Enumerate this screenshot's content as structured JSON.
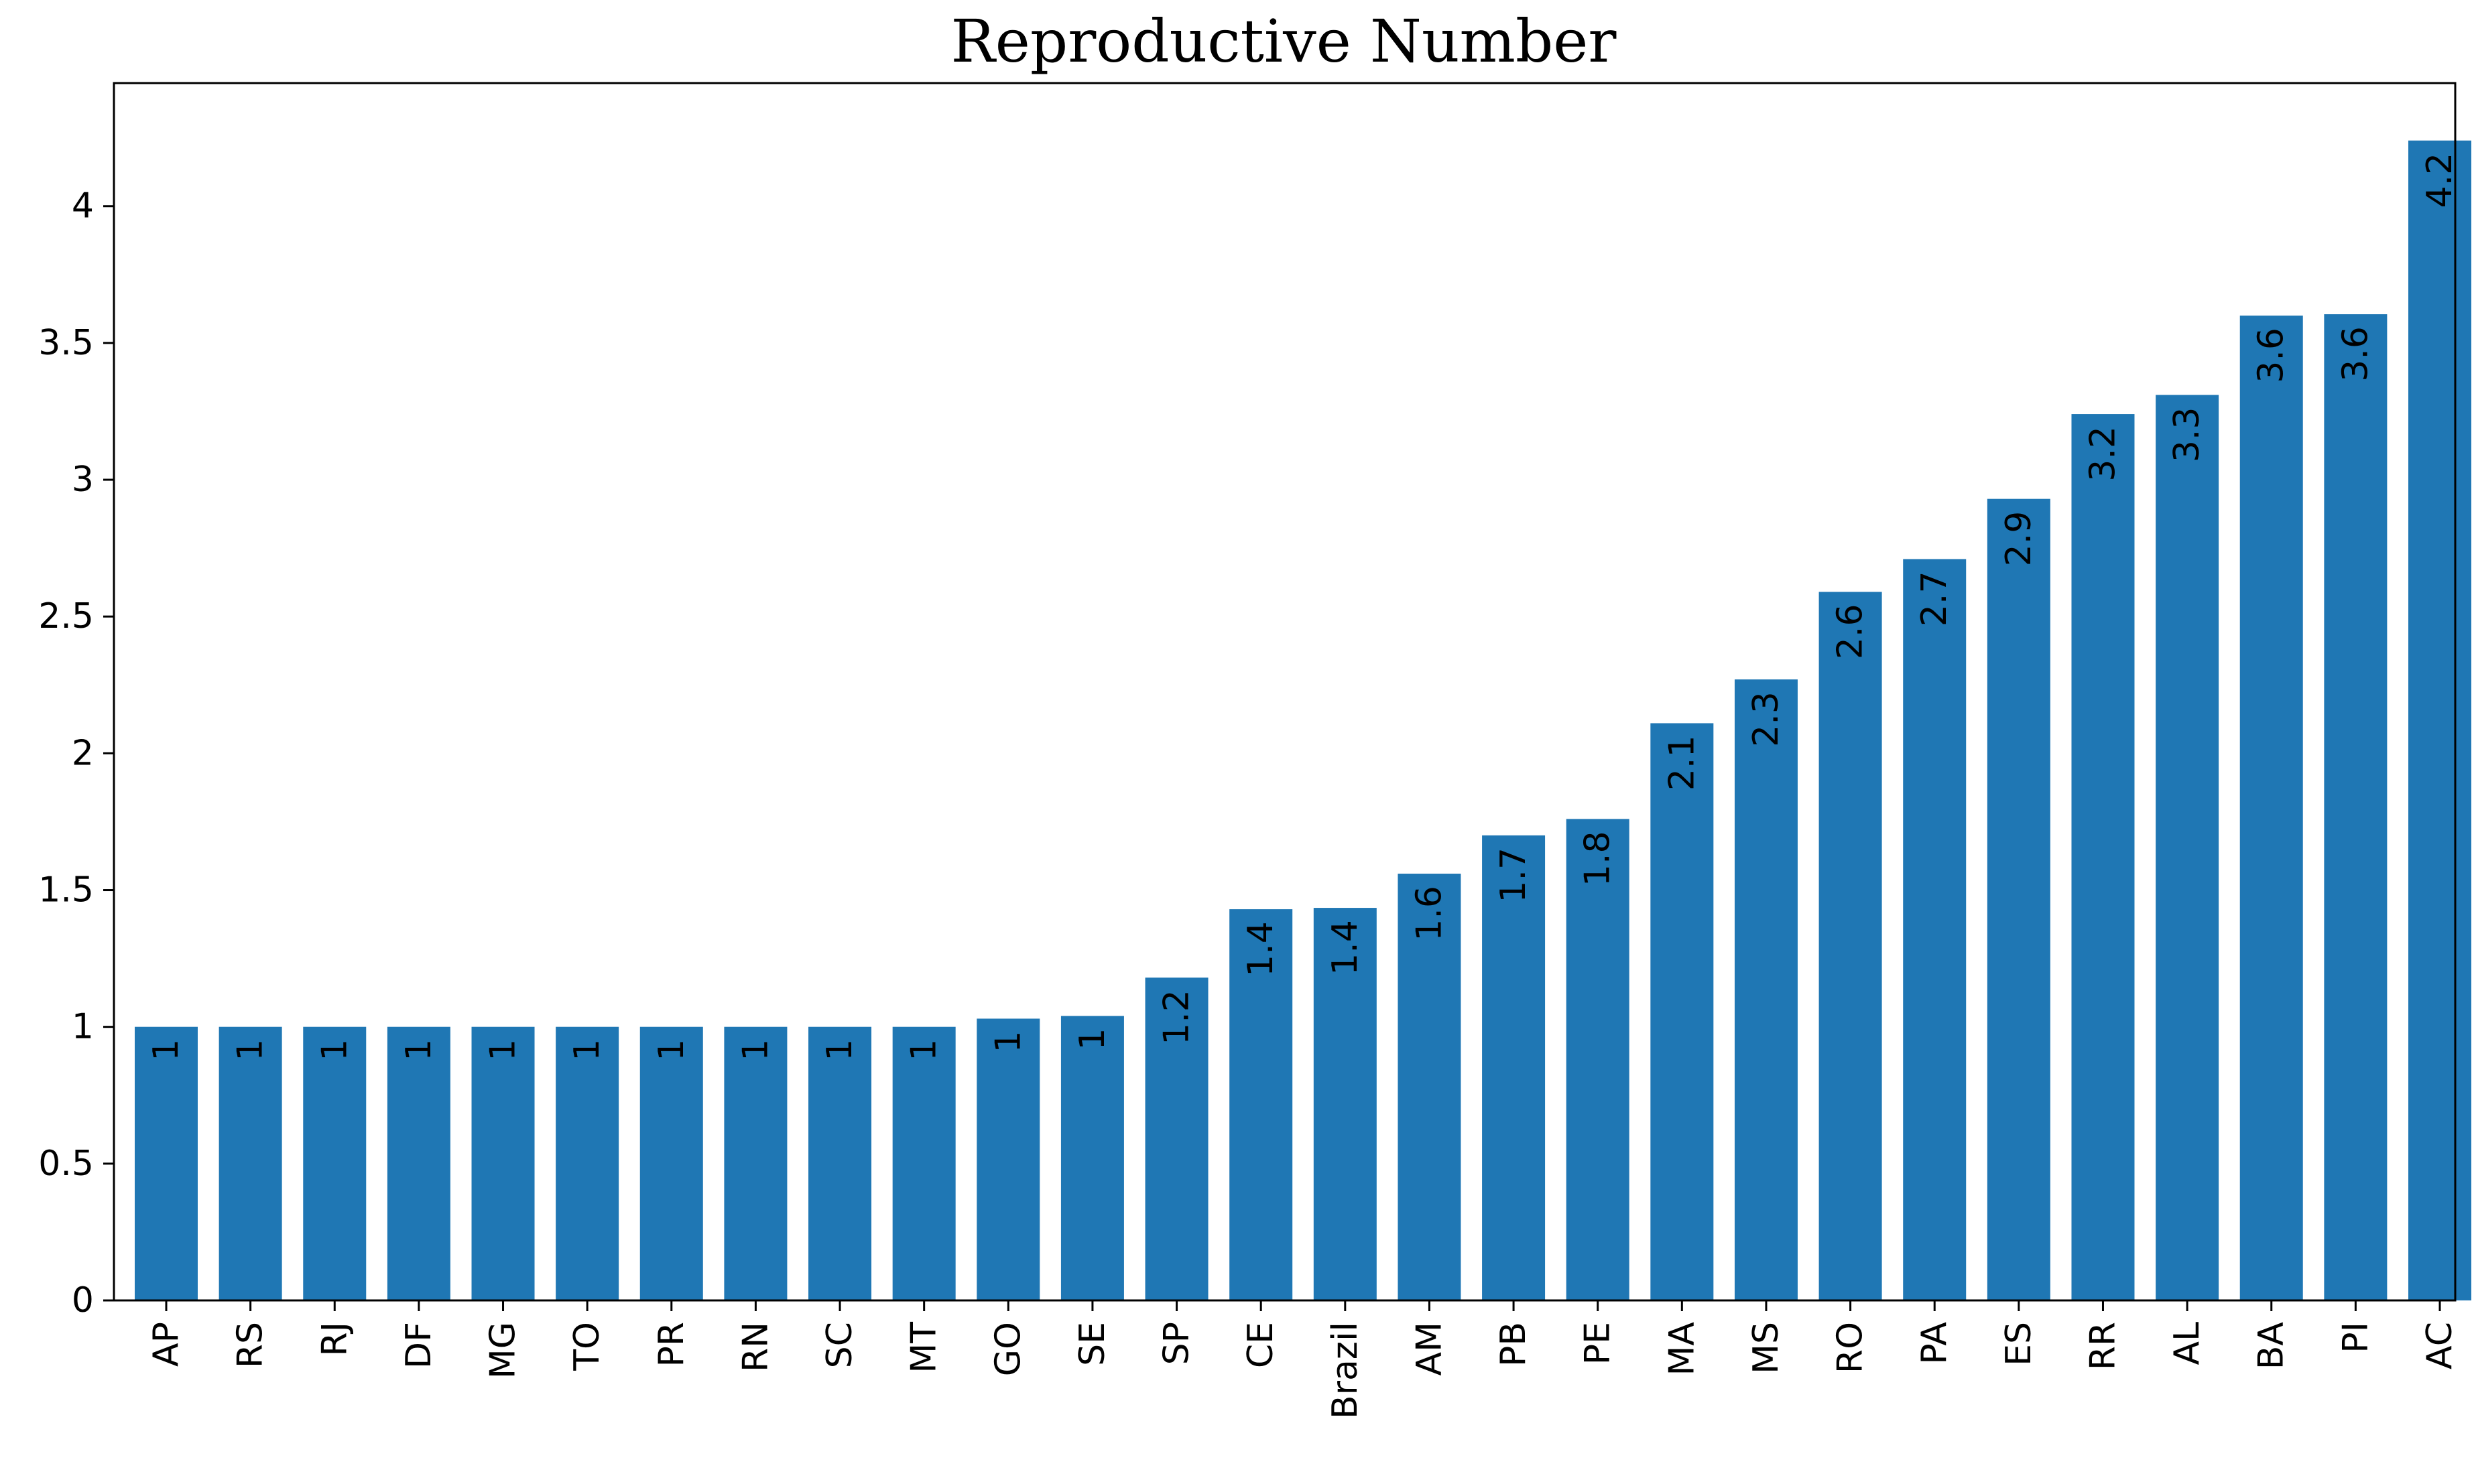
{
  "chart_data": {
    "type": "bar",
    "title": "Reproductive Number",
    "xlabel": "",
    "ylabel": "",
    "categories": [
      "AP",
      "RS",
      "RJ",
      "DF",
      "MG",
      "TO",
      "PR",
      "RN",
      "SC",
      "MT",
      "GO",
      "SE",
      "SP",
      "CE",
      "Brazil",
      "AM",
      "PB",
      "PE",
      "MA",
      "MS",
      "RO",
      "PA",
      "ES",
      "RR",
      "AL",
      "BA",
      "PI",
      "AC"
    ],
    "values": [
      1.0,
      1.0,
      1.0,
      1.0,
      1.0,
      1.0,
      1.0,
      1.0,
      1.0,
      1.0,
      1.03,
      1.04,
      1.18,
      1.43,
      1.435,
      1.56,
      1.7,
      1.76,
      2.11,
      2.27,
      2.59,
      2.71,
      2.93,
      3.24,
      3.31,
      3.6,
      3.605,
      4.24
    ],
    "data_labels": [
      "1",
      "1",
      "1",
      "1",
      "1",
      "1",
      "1",
      "1",
      "1",
      "1",
      "1",
      "1",
      "1.2",
      "1.4",
      "1.4",
      "1.6",
      "1.7",
      "1.8",
      "2.1",
      "2.3",
      "2.6",
      "2.7",
      "2.9",
      "3.2",
      "3.3",
      "3.6",
      "3.6",
      "4.2"
    ],
    "yticks": [
      0,
      0.5,
      1,
      1.5,
      2,
      2.5,
      3,
      3.5,
      4
    ],
    "ytick_labels": [
      "0",
      "0.5",
      "1",
      "1.5",
      "2",
      "2.5",
      "3",
      "3.5",
      "4"
    ],
    "ylim": [
      0,
      4.45
    ],
    "bar_color": "#1f77b4",
    "grid": false,
    "legend": "none"
  }
}
